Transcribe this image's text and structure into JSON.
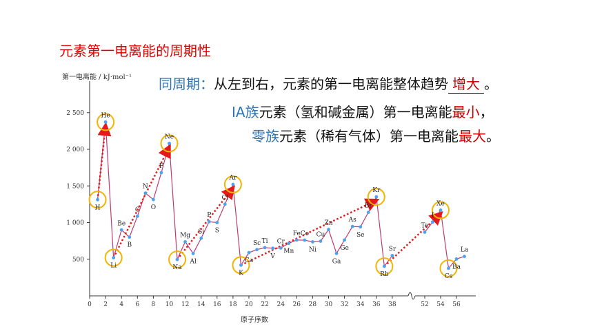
{
  "slide": {
    "title": "元素第一电离能的周期性",
    "line1_prefix": "同周期：",
    "line1_text": "从左到右，元素的第一电离能整体趋势",
    "line1_answer": "增大",
    "line1_end": "。",
    "line2_group": "ⅠA族",
    "line2_text": "元素（氢和碱金属）第一电离能",
    "line2_key": "最小",
    "line2_end": "，",
    "line3_group": "零族",
    "line3_text": "元素（稀有气体）第一电离能",
    "line3_key": "最大",
    "line3_end": "。"
  },
  "chart_data": {
    "type": "line",
    "ylabel": "第一电离能 / kJ·mol⁻¹",
    "xlabel": "原子序数",
    "yticks": [
      500,
      1000,
      1500,
      2000,
      2500
    ],
    "ytick_labels": [
      "500",
      "1 000",
      "1 500",
      "2 000",
      "2 500"
    ],
    "xticks": [
      0,
      2,
      4,
      6,
      8,
      10,
      12,
      14,
      16,
      18,
      20,
      22,
      24,
      26,
      28,
      30,
      32,
      34,
      36,
      38,
      52,
      54,
      56
    ],
    "ylim": [
      300,
      2750
    ],
    "axis_break_between": [
      38,
      52
    ],
    "colors": {
      "line": "#c0396f",
      "point": "#4aa3ec",
      "circle": "#f2b400",
      "arrow": "#e41a1a"
    },
    "series": [
      {
        "x": [
          1,
          2,
          3,
          4,
          5,
          6,
          7,
          8,
          9,
          10,
          11,
          12,
          13,
          14,
          15,
          16,
          17,
          18,
          19,
          20,
          21,
          22,
          23,
          24,
          25,
          26,
          27,
          28,
          29,
          30,
          31,
          32,
          33,
          34,
          35,
          36,
          37,
          38,
          52,
          53,
          54,
          55,
          56,
          57
        ],
        "y": [
          1312,
          2372,
          520,
          899,
          801,
          1086,
          1402,
          1314,
          1681,
          2081,
          496,
          738,
          578,
          786,
          1012,
          1000,
          1251,
          1521,
          419,
          590,
          631,
          658,
          650,
          653,
          717,
          762,
          760,
          737,
          746,
          906,
          579,
          762,
          947,
          941,
          1140,
          1351,
          403,
          550,
          869,
          1008,
          1170,
          376,
          503,
          538
        ],
        "point_labels": [
          "H",
          "He",
          "Li",
          "Be",
          "B",
          "C",
          "N",
          "O",
          "F",
          "Ne",
          "Na",
          "Mg",
          "Al",
          "Si",
          "P",
          "S",
          "Cl",
          "Ar",
          "K",
          "Ca",
          "Sc",
          "Ti",
          "V",
          "Cr",
          "Mn",
          "Fe",
          "Co",
          "Ni",
          "Cu",
          "Zn",
          "Ga",
          "Ge",
          "As",
          "Se",
          "Br",
          "Kr",
          "Rb",
          "Sr",
          "Te",
          "I",
          "Xe",
          "Cs",
          "Ba",
          "La"
        ]
      }
    ],
    "circled_elements": [
      "H",
      "He",
      "Li",
      "Ne",
      "Na",
      "Ar",
      "K",
      "Kr",
      "Rb",
      "Xe",
      "Cs"
    ],
    "trend_arrows": [
      [
        "Li",
        "Ne"
      ],
      [
        "Na",
        "Ar"
      ],
      [
        "K",
        "Kr"
      ],
      [
        "Rb",
        "Xe"
      ],
      [
        "H",
        "He"
      ]
    ]
  }
}
